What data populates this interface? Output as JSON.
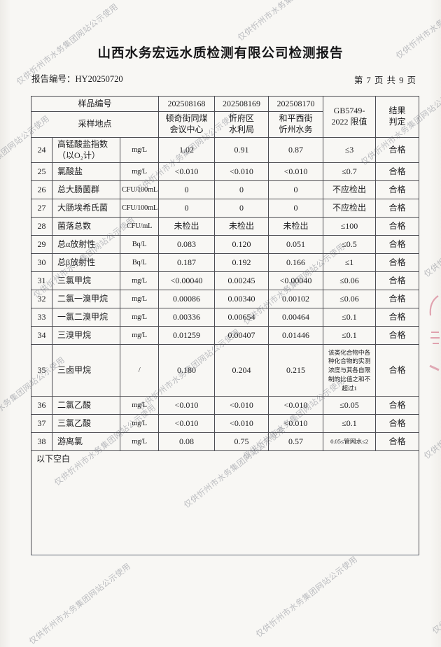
{
  "watermark": {
    "text": "仅供忻州市水务集团网站公示使用"
  },
  "header": {
    "title": "山西水务宏远水质检测有限公司检测报告",
    "report_no_label": "报告编号：",
    "report_no": "HY20250720",
    "page_info": "第 7 页 共 9 页"
  },
  "table": {
    "head": {
      "sample_id_label": "样品编号",
      "sampling_site_label": "采样地点",
      "sample_ids": [
        "202508168",
        "202508169",
        "202508170"
      ],
      "sites": [
        "顿奇街同煤\n会议中心",
        "忻府区\n水利局",
        "和平西街\n忻州水务"
      ],
      "limit_header": "GB5749-\n2022 限值",
      "result_header": "结果\n判定"
    },
    "rows": [
      {
        "no": "24",
        "name": "高锰酸盐指数\n（以O₂计）",
        "unit": "mg/L",
        "v": [
          "1.02",
          "0.91",
          "0.87"
        ],
        "limit": "≤3",
        "result": "合格"
      },
      {
        "no": "25",
        "name": "氯酸盐",
        "unit": "mg/L",
        "v": [
          "<0.010",
          "<0.010",
          "<0.010"
        ],
        "limit": "≤0.7",
        "result": "合格"
      },
      {
        "no": "26",
        "name": "总大肠菌群",
        "unit": "CFU/100mL",
        "v": [
          "0",
          "0",
          "0"
        ],
        "limit": "不应检出",
        "result": "合格"
      },
      {
        "no": "27",
        "name": "大肠埃希氏菌",
        "unit": "CFU/100mL",
        "v": [
          "0",
          "0",
          "0"
        ],
        "limit": "不应检出",
        "result": "合格"
      },
      {
        "no": "28",
        "name": "菌落总数",
        "unit": "CFU/mL",
        "v": [
          "未检出",
          "未检出",
          "未检出"
        ],
        "limit": "≤100",
        "result": "合格"
      },
      {
        "no": "29",
        "name": "总α放射性",
        "unit": "Bq/L",
        "v": [
          "0.083",
          "0.120",
          "0.051"
        ],
        "limit": "≤0.5",
        "result": "合格"
      },
      {
        "no": "30",
        "name": "总β放射性",
        "unit": "Bq/L",
        "v": [
          "0.187",
          "0.192",
          "0.166"
        ],
        "limit": "≤1",
        "result": "合格"
      },
      {
        "no": "31",
        "name": "三氯甲烷",
        "unit": "mg/L",
        "v": [
          "<0.00040",
          "0.00245",
          "<0.00040"
        ],
        "limit": "≤0.06",
        "result": "合格"
      },
      {
        "no": "32",
        "name": "二氯一溴甲烷",
        "unit": "mg/L",
        "v": [
          "0.00086",
          "0.00340",
          "0.00102"
        ],
        "limit": "≤0.06",
        "result": "合格"
      },
      {
        "no": "33",
        "name": "一氯二溴甲烷",
        "unit": "mg/L",
        "v": [
          "0.00336",
          "0.00654",
          "0.00464"
        ],
        "limit": "≤0.1",
        "result": "合格"
      },
      {
        "no": "34",
        "name": "三溴甲烷",
        "unit": "mg/L",
        "v": [
          "0.01259",
          "0.00407",
          "0.01446"
        ],
        "limit": "≤0.1",
        "result": "合格"
      },
      {
        "no": "35",
        "name": "三卤甲烷",
        "unit": "/",
        "v": [
          "0.180",
          "0.204",
          "0.215"
        ],
        "limit": "该类化合物中各种化合物的实测浓度与其各自限制的比值之和不超过1",
        "result": "合格"
      },
      {
        "no": "36",
        "name": "二氯乙酸",
        "unit": "mg/L",
        "v": [
          "<0.010",
          "<0.010",
          "<0.010"
        ],
        "limit": "≤0.05",
        "result": "合格"
      },
      {
        "no": "37",
        "name": "三氯乙酸",
        "unit": "mg/L",
        "v": [
          "<0.010",
          "<0.010",
          "<0.010"
        ],
        "limit": "≤0.1",
        "result": "合格"
      },
      {
        "no": "38",
        "name": "游离氯",
        "unit": "mg/L",
        "v": [
          "0.08",
          "0.75",
          "0.57"
        ],
        "limit": "0.05≤管网水≤2",
        "result": "合格"
      }
    ],
    "footer_note": "以下空白"
  }
}
